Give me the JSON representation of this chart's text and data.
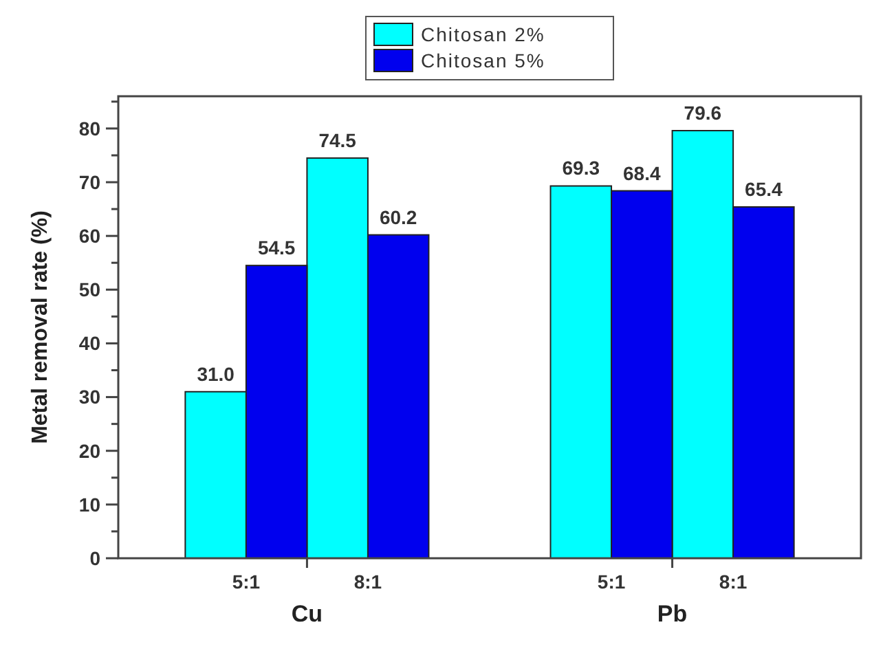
{
  "chart_data": {
    "type": "bar",
    "ylabel": "Metal removal rate (%)",
    "categories": [
      "5:1",
      "8:1",
      null,
      "5:1",
      "8:1"
    ],
    "series": [
      {
        "name": "Chitosan 2%",
        "color": "#00ffff",
        "values": [
          31.0,
          74.5,
          null,
          69.3,
          79.6
        ],
        "value_labels": [
          "31.0",
          "74.5",
          null,
          "69.3",
          "79.6"
        ]
      },
      {
        "name": "Chitosan 5%",
        "color": "#0000ee",
        "values": [
          54.5,
          60.2,
          null,
          68.4,
          65.4
        ],
        "value_labels": [
          "54.5",
          "60.2",
          null,
          "68.4",
          "65.4"
        ]
      }
    ],
    "ylim": [
      0,
      86
    ],
    "yticks": [
      0,
      {
        "value": 5,
        "label": null
      },
      10,
      {
        "value": 15,
        "label": null
      },
      20,
      {
        "value": 25,
        "label": null
      },
      30,
      {
        "value": 35,
        "label": null
      },
      40,
      {
        "value": 45,
        "label": null
      },
      50,
      {
        "value": 55,
        "label": null
      },
      60,
      {
        "value": 65,
        "label": null
      },
      70,
      {
        "value": 75,
        "label": null
      },
      80,
      {
        "value": 85,
        "label": null
      }
    ],
    "annotations": [
      "Cu",
      "Pb"
    ],
    "legend": "top",
    "grid": false
  }
}
